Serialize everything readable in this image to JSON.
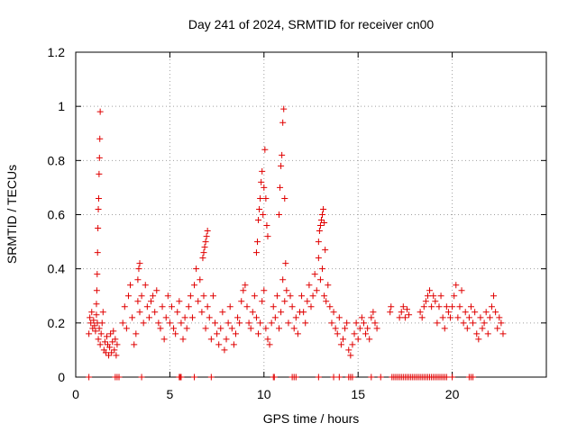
{
  "chart_data": {
    "type": "scatter",
    "title": "Day 241 of 2024, SRMTID for receiver cn00",
    "xlabel": "GPS time / hours",
    "ylabel": "SRMTID / TECUs",
    "xlim": [
      0,
      25
    ],
    "ylim": [
      0,
      1.2
    ],
    "xticks": [
      0,
      5,
      10,
      15,
      20
    ],
    "yticks": [
      0,
      0.2,
      0.4,
      0.6,
      0.8,
      1,
      1.2
    ],
    "ytick_labels": [
      "0",
      "0.2",
      "0.4",
      "0.6",
      "0.8",
      "1",
      "1.2"
    ],
    "grid": true,
    "marker": "plus",
    "color": "#e00000",
    "series": [
      {
        "name": "SRMTID",
        "x": [
          0.7,
          0.75,
          0.8,
          0.85,
          0.9,
          0.95,
          1.0,
          1.05,
          1.1,
          1.15,
          1.2,
          1.25,
          1.3,
          1.35,
          1.4,
          1.45,
          1.5,
          1.55,
          1.6,
          1.65,
          1.7,
          1.75,
          1.8,
          1.85,
          1.9,
          1.95,
          2.0,
          2.05,
          2.1,
          2.15,
          2.2,
          1.1,
          1.12,
          1.14,
          1.16,
          1.18,
          1.2,
          1.22,
          1.24,
          1.26,
          1.28,
          1.3,
          2.5,
          2.6,
          2.7,
          2.8,
          2.9,
          3.0,
          3.1,
          3.2,
          3.3,
          3.4,
          3.5,
          3.6,
          3.7,
          3.8,
          3.9,
          4.0,
          4.1,
          4.2,
          4.3,
          4.4,
          4.5,
          4.6,
          4.7,
          4.8,
          4.9,
          5.0,
          5.1,
          5.2,
          5.3,
          5.4,
          5.5,
          5.6,
          5.7,
          5.8,
          5.9,
          6.0,
          6.1,
          6.2,
          6.3,
          6.4,
          6.5,
          6.6,
          6.7,
          6.8,
          6.9,
          7.0,
          7.1,
          7.2,
          7.3,
          7.4,
          7.5,
          7.6,
          7.7,
          7.8,
          7.9,
          8.0,
          8.1,
          8.2,
          8.3,
          8.4,
          8.5,
          8.6,
          8.7,
          8.8,
          8.9,
          3.3,
          3.35,
          3.4,
          6.75,
          6.8,
          6.85,
          6.9,
          6.95,
          7.0,
          9.0,
          9.1,
          9.2,
          9.3,
          9.4,
          9.5,
          9.6,
          9.7,
          9.8,
          9.9,
          10.0,
          10.1,
          10.2,
          10.3,
          10.4,
          10.5,
          10.6,
          10.7,
          10.8,
          10.9,
          11.0,
          11.1,
          11.2,
          11.3,
          11.4,
          11.5,
          11.6,
          11.7,
          11.8,
          11.9,
          9.6,
          9.65,
          9.7,
          9.75,
          9.8,
          9.85,
          9.9,
          9.95,
          10.0,
          10.05,
          10.1,
          10.15,
          10.2,
          10.8,
          10.85,
          10.9,
          10.95,
          11.0,
          11.05,
          11.1,
          11.15,
          12.0,
          12.1,
          12.2,
          12.3,
          12.4,
          12.5,
          12.6,
          12.7,
          12.8,
          12.9,
          13.0,
          13.1,
          13.2,
          13.3,
          13.4,
          13.5,
          13.6,
          13.7,
          13.8,
          13.9,
          14.0,
          14.1,
          14.2,
          14.3,
          14.4,
          14.5,
          14.6,
          14.7,
          14.8,
          14.9,
          15.0,
          15.1,
          15.2,
          15.3,
          15.4,
          15.5,
          15.6,
          15.7,
          15.8,
          15.9,
          16.0,
          12.9,
          12.95,
          13.0,
          13.05,
          13.1,
          13.15,
          13.2,
          13.25,
          16.7,
          16.75,
          17.2,
          17.3,
          17.4,
          17.5,
          17.6,
          17.7,
          18.3,
          18.4,
          18.5,
          18.6,
          18.7,
          18.8,
          18.9,
          19.0,
          19.1,
          19.2,
          19.3,
          19.4,
          19.5,
          19.6,
          19.7,
          19.8,
          19.9,
          20.0,
          20.1,
          20.2,
          20.3,
          20.4,
          20.5,
          20.6,
          20.7,
          20.8,
          20.9,
          21.0,
          21.1,
          21.2,
          21.3,
          21.4,
          21.5,
          21.6,
          21.7,
          21.8,
          21.9,
          22.0,
          22.1,
          22.2,
          22.3,
          22.4,
          22.5,
          22.6,
          22.7,
          0.7,
          2.1,
          2.2,
          2.3,
          3.5,
          5.5,
          5.55,
          5.6,
          6.3,
          7.2,
          10.5,
          10.55,
          11.5,
          11.6,
          11.7,
          12.9,
          13.7,
          14.0,
          14.5,
          14.6,
          14.7,
          15.7,
          16.2,
          16.8,
          16.9,
          17.0,
          17.1,
          17.2,
          17.3,
          17.4,
          17.5,
          17.6,
          17.7,
          17.8,
          17.9,
          18.0,
          18.1,
          18.2,
          18.3,
          18.4,
          18.5,
          18.6,
          18.7,
          18.8,
          18.9,
          19.0,
          19.1,
          19.2,
          19.3,
          19.4,
          19.5,
          19.6,
          19.7,
          20.0,
          20.9,
          21.0,
          21.1
        ],
        "y": [
          0.16,
          0.22,
          0.2,
          0.24,
          0.18,
          0.21,
          0.19,
          0.17,
          0.23,
          0.2,
          0.14,
          0.18,
          0.12,
          0.16,
          0.2,
          0.24,
          0.1,
          0.13,
          0.09,
          0.15,
          0.12,
          0.08,
          0.11,
          0.16,
          0.09,
          0.13,
          0.17,
          0.1,
          0.14,
          0.08,
          0.12,
          0.27,
          0.32,
          0.38,
          0.46,
          0.55,
          0.62,
          0.66,
          0.75,
          0.81,
          0.88,
          0.98,
          0.2,
          0.26,
          0.18,
          0.3,
          0.34,
          0.22,
          0.12,
          0.16,
          0.28,
          0.24,
          0.3,
          0.2,
          0.34,
          0.26,
          0.22,
          0.28,
          0.3,
          0.24,
          0.32,
          0.2,
          0.18,
          0.26,
          0.14,
          0.22,
          0.3,
          0.2,
          0.26,
          0.18,
          0.16,
          0.24,
          0.28,
          0.2,
          0.14,
          0.22,
          0.18,
          0.26,
          0.3,
          0.22,
          0.34,
          0.4,
          0.28,
          0.36,
          0.24,
          0.3,
          0.18,
          0.26,
          0.22,
          0.14,
          0.3,
          0.2,
          0.16,
          0.12,
          0.18,
          0.24,
          0.1,
          0.14,
          0.2,
          0.26,
          0.18,
          0.12,
          0.16,
          0.22,
          0.2,
          0.28,
          0.32,
          0.36,
          0.4,
          0.42,
          0.44,
          0.46,
          0.48,
          0.5,
          0.52,
          0.54,
          0.34,
          0.26,
          0.2,
          0.18,
          0.24,
          0.3,
          0.22,
          0.16,
          0.2,
          0.28,
          0.32,
          0.18,
          0.14,
          0.12,
          0.2,
          0.26,
          0.22,
          0.3,
          0.18,
          0.24,
          0.36,
          0.28,
          0.32,
          0.2,
          0.3,
          0.26,
          0.18,
          0.22,
          0.16,
          0.24,
          0.46,
          0.5,
          0.58,
          0.62,
          0.66,
          0.72,
          0.76,
          0.6,
          0.7,
          0.84,
          0.66,
          0.56,
          0.52,
          0.6,
          0.7,
          0.78,
          0.82,
          0.94,
          0.99,
          0.66,
          0.42,
          0.3,
          0.24,
          0.2,
          0.28,
          0.34,
          0.26,
          0.3,
          0.38,
          0.32,
          0.44,
          0.36,
          0.4,
          0.3,
          0.28,
          0.34,
          0.26,
          0.2,
          0.24,
          0.18,
          0.16,
          0.22,
          0.12,
          0.14,
          0.18,
          0.2,
          0.1,
          0.08,
          0.12,
          0.16,
          0.2,
          0.14,
          0.18,
          0.22,
          0.2,
          0.16,
          0.18,
          0.14,
          0.22,
          0.24,
          0.2,
          0.18,
          0.5,
          0.54,
          0.56,
          0.58,
          0.6,
          0.62,
          0.57,
          0.47,
          0.24,
          0.26,
          0.22,
          0.24,
          0.26,
          0.22,
          0.25,
          0.23,
          0.24,
          0.22,
          0.26,
          0.28,
          0.3,
          0.32,
          0.26,
          0.3,
          0.28,
          0.2,
          0.26,
          0.3,
          0.22,
          0.18,
          0.26,
          0.24,
          0.22,
          0.26,
          0.3,
          0.34,
          0.22,
          0.26,
          0.32,
          0.2,
          0.24,
          0.18,
          0.22,
          0.26,
          0.2,
          0.24,
          0.16,
          0.14,
          0.22,
          0.18,
          0.2,
          0.24,
          0.16,
          0.22,
          0.26,
          0.3,
          0.24,
          0.18,
          0.22,
          0.2,
          0.16,
          0,
          0,
          0,
          0,
          0,
          0,
          0,
          0,
          0,
          0,
          0,
          0,
          0,
          0,
          0,
          0,
          0,
          0,
          0,
          0,
          0,
          0,
          0,
          0,
          0,
          0,
          0,
          0,
          0,
          0,
          0,
          0,
          0,
          0,
          0,
          0,
          0,
          0,
          0,
          0,
          0,
          0,
          0,
          0,
          0,
          0,
          0,
          0,
          0,
          0,
          0,
          0,
          0,
          0,
          0,
          0,
          0
        ]
      }
    ]
  }
}
